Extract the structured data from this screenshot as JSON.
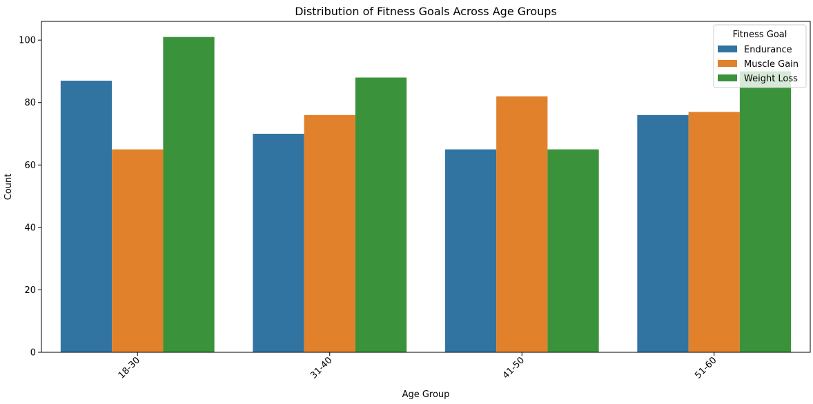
{
  "chart_data": {
    "type": "bar",
    "title": "Distribution of Fitness Goals Across Age Groups",
    "xlabel": "Age Group",
    "ylabel": "Count",
    "categories": [
      "18-30",
      "31-40",
      "41-50",
      "51-60"
    ],
    "ylim": [
      0,
      106
    ],
    "yticks": [
      0,
      20,
      40,
      60,
      80,
      100
    ],
    "grid": false,
    "legend": {
      "title": "Fitness Goal",
      "position": "top-right"
    },
    "series": [
      {
        "name": "Endurance",
        "color": "#3274a1",
        "values": [
          87,
          70,
          65,
          76
        ]
      },
      {
        "name": "Muscle Gain",
        "color": "#e1812c",
        "values": [
          65,
          76,
          82,
          77
        ]
      },
      {
        "name": "Weight Loss",
        "color": "#3a923a",
        "values": [
          101,
          88,
          65,
          90
        ]
      }
    ]
  }
}
